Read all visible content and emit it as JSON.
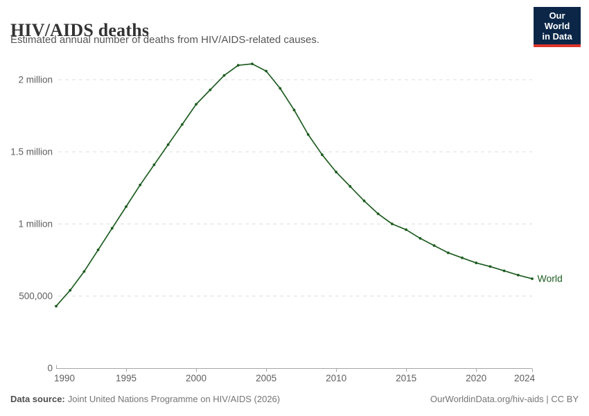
{
  "header": {
    "title": "HIV/AIDS deaths",
    "subtitle": "Estimated annual number of deaths from HIV/AIDS-related causes."
  },
  "logo": {
    "line1": "Our World",
    "line2": "in Data",
    "bg_color": "#0b2647",
    "accent_color": "#dc352b"
  },
  "chart_data": {
    "type": "line",
    "title": "HIV/AIDS deaths",
    "entity": "World",
    "line_color": "#1d5c20",
    "grid": "horizontal-dashed",
    "legend_position": "end-of-line",
    "xlabel": "",
    "ylabel": "",
    "xlim": [
      1990,
      2024
    ],
    "ylim": [
      0,
      2150000
    ],
    "x_ticks": [
      1990,
      1995,
      2000,
      2005,
      2010,
      2015,
      2020,
      2024
    ],
    "y_ticks": [
      {
        "value": 0,
        "label": "0"
      },
      {
        "value": 500000,
        "label": "500,000"
      },
      {
        "value": 1000000,
        "label": "1 million"
      },
      {
        "value": 1500000,
        "label": "1.5 million"
      },
      {
        "value": 2000000,
        "label": "2 million"
      }
    ],
    "x": [
      1990,
      1991,
      1992,
      1993,
      1994,
      1995,
      1996,
      1997,
      1998,
      1999,
      2000,
      2001,
      2002,
      2003,
      2004,
      2005,
      2006,
      2007,
      2008,
      2009,
      2010,
      2011,
      2012,
      2013,
      2014,
      2015,
      2016,
      2017,
      2018,
      2019,
      2020,
      2021,
      2022,
      2023,
      2024
    ],
    "series": [
      {
        "name": "World",
        "values": [
          430000,
          540000,
          670000,
          820000,
          970000,
          1120000,
          1270000,
          1410000,
          1550000,
          1690000,
          1830000,
          1930000,
          2030000,
          2100000,
          2110000,
          2060000,
          1940000,
          1790000,
          1620000,
          1480000,
          1360000,
          1260000,
          1160000,
          1070000,
          1000000,
          960000,
          900000,
          850000,
          800000,
          765000,
          730000,
          705000,
          675000,
          645000,
          620000
        ]
      }
    ]
  },
  "footer": {
    "source_label": "Data source:",
    "source_text": "Joint United Nations Programme on HIV/AIDS (2026)",
    "credit": "OurWorldinData.org/hiv-aids | CC BY"
  }
}
